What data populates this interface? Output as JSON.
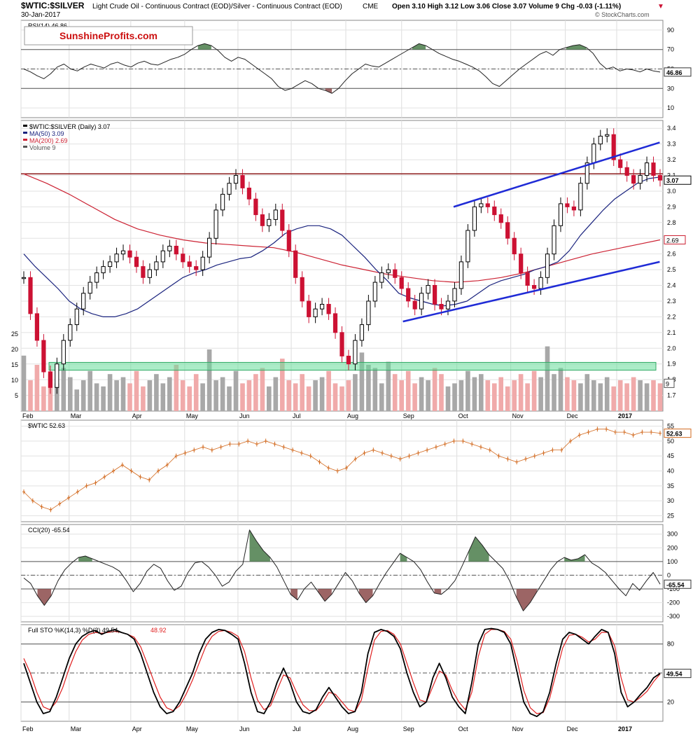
{
  "header": {
    "symbol": "$WTIC:$SILVER",
    "description": "Light Crude Oil - Continuous Contract (EOD)/Silver - Continuous Contract (EOD)",
    "exchange": "CME",
    "date": "30-Jan-2017",
    "quote": "Open 3.10  High 3.12  Low 3.06  Close 3.07  Volume 9  Chg -0.03 (-1.11%)",
    "copyright": "© StockCharts.com",
    "watermark": "SunshineProfits.com"
  },
  "colors": {
    "up": "#000000",
    "down": "#cc1133",
    "ma50": "#1a237e",
    "ma200": "#cc2233",
    "wtic": "#d2691e",
    "channel": "#1f2bd6",
    "resistance": "#8b1a1a",
    "support_zone": "#66dd99",
    "volume_up": "#a8a8a8",
    "volume_down": "#f0aaaa",
    "positive_fill": "#4a7c4a",
    "negative_fill": "#8b4a4a",
    "sto_k": "#000000",
    "sto_d": "#e02020"
  },
  "x_axis": {
    "months": [
      "Feb",
      "Mar",
      "Apr",
      "May",
      "Jun",
      "Jul",
      "Aug",
      "Sep",
      "Oct",
      "Nov",
      "Dec",
      "2017"
    ],
    "year_label_bold": "2017"
  },
  "chart_data": [
    {
      "type": "line",
      "panel": "rsi",
      "label": "RSI(14) 46.86",
      "last_value_label": "46.86",
      "ylim": [
        0,
        100
      ],
      "ticks": [
        "90",
        "70",
        "50",
        "30",
        "10"
      ],
      "overbought": 70,
      "oversold": 30,
      "values": [
        50,
        47,
        43,
        40,
        45,
        52,
        55,
        50,
        48,
        52,
        55,
        53,
        51,
        55,
        57,
        54,
        52,
        56,
        58,
        55,
        54,
        57,
        60,
        62,
        65,
        70,
        74,
        76,
        74,
        69,
        62,
        58,
        62,
        60,
        55,
        50,
        45,
        40,
        32,
        28,
        30,
        34,
        38,
        35,
        30,
        28,
        25,
        30,
        38,
        45,
        50,
        55,
        53,
        52,
        56,
        60,
        64,
        68,
        72,
        76,
        74,
        70,
        66,
        63,
        60,
        58,
        55,
        52,
        48,
        42,
        35,
        32,
        38,
        44,
        50,
        55,
        60,
        65,
        68,
        64,
        70,
        72,
        74,
        75,
        72,
        66,
        56,
        50,
        52,
        48,
        50,
        49,
        47,
        50,
        48,
        46.86
      ]
    },
    {
      "type": "line",
      "panel": "price",
      "label": "$WTIC:$SILVER (Daily) 3.07",
      "last_value_label": "3.07",
      "ylim": [
        1.6,
        3.45
      ],
      "ticks": [
        "3.4",
        "3.3",
        "3.2",
        "3.1",
        "3.0",
        "2.9",
        "2.8",
        "2.7",
        "2.6",
        "2.5",
        "2.4",
        "2.3",
        "2.2",
        "2.1",
        "2.0",
        "1.9",
        "1.8",
        "1.7"
      ],
      "series": [
        {
          "name": "$WTIC:$SILVER",
          "values": [
            2.45,
            2.22,
            2.05,
            1.85,
            1.75,
            1.9,
            2.05,
            2.15,
            2.25,
            2.35,
            2.42,
            2.48,
            2.52,
            2.55,
            2.6,
            2.62,
            2.58,
            2.52,
            2.45,
            2.5,
            2.55,
            2.62,
            2.65,
            2.6,
            2.55,
            2.52,
            2.5,
            2.58,
            2.7,
            2.88,
            2.98,
            3.05,
            3.1,
            3.02,
            2.95,
            2.85,
            2.78,
            2.82,
            2.88,
            2.75,
            2.62,
            2.45,
            2.3,
            2.2,
            2.25,
            2.28,
            2.22,
            2.1,
            1.95,
            1.9,
            2.05,
            2.15,
            2.3,
            2.42,
            2.48,
            2.5,
            2.45,
            2.38,
            2.3,
            2.25,
            2.35,
            2.4,
            2.28,
            2.25,
            2.3,
            2.38,
            2.55,
            2.75,
            2.9,
            2.92,
            2.9,
            2.85,
            2.8,
            2.7,
            2.6,
            2.48,
            2.4,
            2.38,
            2.45,
            2.6,
            2.78,
            2.92,
            2.9,
            2.88,
            3.05,
            3.18,
            3.3,
            3.35,
            3.36,
            3.2,
            3.15,
            3.1,
            3.05,
            3.1,
            3.18,
            3.1,
            3.07
          ]
        },
        {
          "name": "MA(50) 3.09",
          "values": [
            2.6,
            2.52,
            2.45,
            2.38,
            2.3,
            2.25,
            2.22,
            2.2,
            2.2,
            2.22,
            2.25,
            2.3,
            2.35,
            2.4,
            2.45,
            2.48,
            2.5,
            2.53,
            2.55,
            2.57,
            2.58,
            2.62,
            2.67,
            2.73,
            2.76,
            2.78,
            2.78,
            2.76,
            2.72,
            2.65,
            2.58,
            2.5,
            2.43,
            2.35,
            2.32,
            2.3,
            2.28,
            2.27,
            2.28,
            2.3,
            2.35,
            2.4,
            2.43,
            2.45,
            2.47,
            2.5,
            2.52,
            2.55,
            2.62,
            2.72,
            2.8,
            2.88,
            2.95,
            3.0,
            3.05,
            3.08,
            3.09
          ]
        },
        {
          "name": "MA(200) 2.69",
          "values": [
            3.11,
            3.05,
            2.98,
            2.9,
            2.82,
            2.76,
            2.72,
            2.69,
            2.67,
            2.66,
            2.65,
            2.64,
            2.61,
            2.57,
            2.53,
            2.5,
            2.47,
            2.45,
            2.43,
            2.42,
            2.43,
            2.45,
            2.48,
            2.52,
            2.56,
            2.6,
            2.63,
            2.66,
            2.69
          ]
        }
      ]
    },
    {
      "type": "bar",
      "panel": "volume",
      "label": "Volume 9",
      "last_value_label": "9",
      "ylim": [
        0,
        30
      ],
      "ticks": [
        "25",
        "20",
        "15",
        "10",
        "5"
      ],
      "values": [
        18,
        10,
        15,
        8,
        12,
        9,
        14,
        11,
        7,
        10,
        13,
        9,
        8,
        12,
        10,
        11,
        9,
        13,
        8,
        10,
        12,
        9,
        11,
        15,
        10,
        8,
        12,
        9,
        20,
        10,
        11,
        8,
        13,
        9,
        10,
        12,
        14,
        8,
        11,
        17,
        10,
        9,
        12,
        8,
        10,
        11,
        13,
        9,
        8,
        10,
        12,
        19,
        15,
        14,
        9,
        16,
        12,
        10,
        13,
        9,
        11,
        10,
        14,
        12,
        8,
        9,
        10,
        13,
        11,
        12,
        10,
        9,
        11,
        8,
        10,
        12,
        9,
        13,
        11,
        21,
        12,
        14,
        11,
        10,
        9,
        12,
        10,
        9,
        11,
        8,
        10,
        9,
        11,
        10,
        9,
        10,
        9
      ]
    },
    {
      "type": "line",
      "panel": "wtic",
      "label": "$WTIC 52.63",
      "last_value_label": "52.63",
      "ylim": [
        23,
        57
      ],
      "ticks": [
        "55",
        "50",
        "45",
        "40",
        "35",
        "30",
        "25"
      ],
      "values": [
        33,
        30,
        28,
        27,
        29,
        31,
        33,
        35,
        36,
        38,
        40,
        42,
        40,
        38,
        37,
        40,
        42,
        45,
        46,
        47,
        48,
        47,
        48,
        49,
        49,
        50,
        49,
        50,
        49,
        48,
        47,
        46,
        45,
        43,
        41,
        40,
        41,
        44,
        46,
        47,
        46,
        45,
        44,
        45,
        46,
        47,
        48,
        49,
        50,
        50,
        49,
        48,
        47,
        45,
        44,
        43,
        44,
        45,
        46,
        47,
        47,
        50,
        52,
        53,
        54,
        54,
        53,
        53,
        52,
        53,
        53,
        52.63
      ]
    },
    {
      "type": "area",
      "panel": "cci",
      "label": "CCI(20) -65.54",
      "last_value_label": "-65.54",
      "ylim": [
        -340,
        370
      ],
      "ticks": [
        "300",
        "200",
        "100",
        "0",
        "-100",
        "-200",
        "-300"
      ],
      "values": [
        -20,
        -60,
        -150,
        -220,
        -150,
        -40,
        40,
        90,
        130,
        140,
        120,
        100,
        80,
        60,
        30,
        -40,
        -120,
        -60,
        30,
        80,
        50,
        -40,
        -110,
        -80,
        20,
        90,
        100,
        60,
        0,
        -80,
        -50,
        30,
        80,
        330,
        250,
        180,
        130,
        60,
        -40,
        -140,
        -180,
        -100,
        -50,
        -120,
        -190,
        -140,
        -60,
        20,
        -40,
        -130,
        -200,
        -150,
        -60,
        20,
        90,
        160,
        130,
        100,
        40,
        -50,
        -130,
        -140,
        -100,
        -40,
        60,
        170,
        280,
        220,
        150,
        100,
        50,
        -40,
        -160,
        -260,
        -200,
        -120,
        -40,
        40,
        100,
        130,
        110,
        120,
        150,
        90,
        60,
        20,
        -40,
        -100,
        -150,
        -60,
        -110,
        -40,
        20,
        -65.54
      ]
    },
    {
      "type": "line",
      "panel": "sto",
      "label": "Full STO %K(14,3) %D(3) 49.54,",
      "label_d": "48.92",
      "last_value_label": "49.54",
      "ylim": [
        0,
        100
      ],
      "ticks": [
        "80",
        "20"
      ],
      "series": [
        {
          "name": "%K",
          "values": [
            60,
            40,
            20,
            8,
            10,
            25,
            45,
            65,
            80,
            88,
            92,
            94,
            90,
            93,
            95,
            92,
            90,
            85,
            70,
            50,
            30,
            15,
            8,
            10,
            20,
            35,
            50,
            70,
            85,
            92,
            95,
            94,
            90,
            85,
            60,
            30,
            10,
            8,
            20,
            40,
            55,
            40,
            20,
            10,
            8,
            12,
            25,
            35,
            25,
            15,
            8,
            10,
            30,
            70,
            92,
            95,
            93,
            88,
            75,
            50,
            30,
            15,
            20,
            45,
            60,
            45,
            25,
            15,
            8,
            40,
            80,
            95,
            96,
            95,
            92,
            80,
            50,
            20,
            8,
            5,
            10,
            30,
            60,
            85,
            92,
            90,
            85,
            80,
            88,
            95,
            92,
            70,
            30,
            15,
            20,
            28,
            35,
            45,
            49.54
          ]
        },
        {
          "name": "%D",
          "values": [
            65,
            50,
            30,
            15,
            12,
            20,
            35,
            55,
            72,
            84,
            90,
            92,
            91,
            92,
            93,
            92,
            90,
            87,
            77,
            60,
            42,
            25,
            14,
            11,
            16,
            28,
            43,
            60,
            77,
            88,
            93,
            94,
            92,
            88,
            72,
            45,
            22,
            12,
            16,
            32,
            48,
            45,
            30,
            17,
            11,
            11,
            19,
            30,
            28,
            20,
            12,
            10,
            22,
            55,
            84,
            93,
            94,
            90,
            80,
            60,
            40,
            22,
            20,
            36,
            52,
            48,
            32,
            20,
            12,
            30,
            67,
            90,
            95,
            95,
            93,
            85,
            62,
            32,
            14,
            8,
            9,
            24,
            50,
            76,
            89,
            90,
            87,
            82,
            85,
            92,
            92,
            78,
            45,
            22,
            20,
            25,
            31,
            41,
            48.92
          ]
        }
      ]
    }
  ]
}
